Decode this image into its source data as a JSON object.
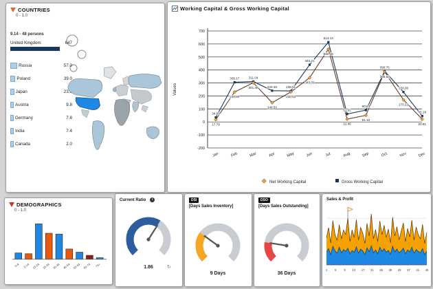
{
  "window": {
    "bg": "#d5d5d5",
    "panel_bg": "#ffffff"
  },
  "countries_panel": {
    "title": "COUNTRIES",
    "subtitle": "0 - 1.0",
    "size_legend": "9.14 - 48 persons",
    "rows": [
      {
        "name": "United Kingdom",
        "value": "647",
        "pct": 100
      },
      {
        "name": "Russia",
        "value": "57.0",
        "pct": 9
      },
      {
        "name": "Poland",
        "value": "39.0",
        "pct": 6
      },
      {
        "name": "Japan",
        "value": "23.9",
        "pct": 4
      },
      {
        "name": "Austria",
        "value": "9.8",
        "pct": 3
      },
      {
        "name": "Germany",
        "value": "7.8",
        "pct": 2
      },
      {
        "name": "India",
        "value": "7.4",
        "pct": 2
      },
      {
        "name": "Canada",
        "value": "2.0",
        "pct": 1
      }
    ],
    "map": {
      "highlight_color": "#1e88e5",
      "mid_color": "#a9c7d8",
      "gray_color": "#c6cbd0",
      "dark_color": "#9aa4a9"
    }
  },
  "chart_data": [
    {
      "id": "working_capital",
      "type": "line",
      "title": "Working Capital & Gross Working Capital",
      "ylabel": "Values",
      "ylim": [
        -200,
        700
      ],
      "ytick_step": 100,
      "grid": true,
      "legend_position": "bottom",
      "categories": [
        "Jan",
        "Feb",
        "Mar",
        "Apr",
        "May",
        "Jun",
        "Jul",
        "Aug",
        "Sep",
        "Oct",
        "Nov",
        "Dec"
      ],
      "series": [
        {
          "name": "Gross Working Capital",
          "line_color": "#17375e",
          "marker": "square",
          "marker_color": "#17375e",
          "values": [
            34.99,
            305.17,
            311.04,
            240.48,
            238.61,
            440.21,
            614.13,
            61.02,
            90.84,
            390.76,
            230.36,
            45.18
          ]
        },
        {
          "name": "Net Working Capital",
          "line_color": "#6d392a",
          "marker": "diamond",
          "marker_color": "#f2a33c",
          "values": [
            17.79,
            230.8,
            301.48,
            148.5,
            230.63,
            340.09,
            560.48,
            21.46,
            51.1,
            385.52,
            170.23,
            20.91
          ]
        }
      ]
    },
    {
      "id": "demographics",
      "type": "bar",
      "title": "DEMOGRAPHICS",
      "subtitle": "0 - 1.0",
      "categories": [
        "0-4",
        "5-14",
        "15-24",
        "25-34",
        "35-44",
        "45-54",
        "55-64",
        "65-74",
        "75+"
      ],
      "values": [
        8,
        7,
        45,
        33,
        32,
        13,
        9,
        5,
        2
      ],
      "colors": [
        "#2086e0",
        "#e8590c",
        "#2086e0",
        "#e8590c",
        "#2086e0",
        "#e8590c",
        "#2086e0",
        "#8b1f1f",
        "#2086e0"
      ],
      "ylim": [
        0,
        50
      ]
    },
    {
      "id": "current_ratio",
      "type": "gauge",
      "title": "Current Ratio",
      "value": 1.86,
      "min": 0,
      "max": 3,
      "display": "1.86",
      "color": "#2e5d9e"
    },
    {
      "id": "days_sales_inventory",
      "type": "gauge",
      "badge": "DSI",
      "title": "[Days Sales Inventory]",
      "value": 9,
      "min": 0,
      "max": 30,
      "display": "9 Days",
      "color": "#f5a623"
    },
    {
      "id": "days_sales_outstanding",
      "type": "gauge",
      "badge": "DSO",
      "title": "[Days Sales Outstanding]",
      "value": 36,
      "min": 0,
      "max": 180,
      "display": "36 Days",
      "color": "#e84545"
    },
    {
      "id": "sales_profit",
      "type": "area",
      "title": "Sales & Profit",
      "x_labels": [
        "1",
        "5",
        "9",
        "13",
        "17",
        "21",
        "25",
        "29",
        "33",
        "37",
        "41",
        "45"
      ],
      "ylim": [
        0,
        115
      ],
      "annotation": {
        "type": "flag",
        "index": 10
      },
      "series": [
        {
          "name": "Sales",
          "color": "#f5a200",
          "edge_color": "#5a3000",
          "values": [
            30,
            45,
            25,
            55,
            35,
            28,
            48,
            30,
            42,
            36,
            64,
            26,
            44,
            32,
            58,
            28,
            46,
            38,
            24,
            52,
            34,
            68,
            30,
            44,
            26,
            56,
            36,
            50,
            32,
            46,
            24,
            62,
            34,
            48,
            28,
            42,
            54,
            26,
            46,
            32,
            58,
            28,
            48,
            36,
            30,
            52,
            24,
            40
          ]
        },
        {
          "name": "Profit",
          "color": "#1e88e5",
          "edge_color": "#0b3d66",
          "values": [
            28,
            35,
            22,
            40,
            30,
            25,
            38,
            26,
            33,
            29,
            36,
            24,
            31,
            27,
            39,
            25,
            34,
            30,
            22,
            37,
            28,
            41,
            26,
            32,
            24,
            38,
            29,
            35,
            27,
            31,
            23,
            40,
            28,
            34,
            26,
            30,
            36,
            24,
            32,
            28,
            38,
            25,
            33,
            29,
            26,
            35,
            22,
            30
          ]
        }
      ]
    }
  ]
}
